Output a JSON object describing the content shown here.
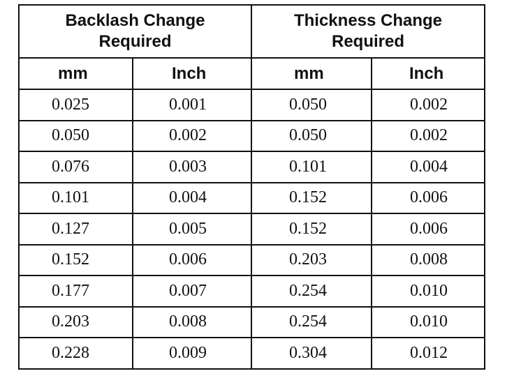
{
  "table": {
    "group_headers": [
      {
        "line1": "Backlash Change",
        "line2": "Required"
      },
      {
        "line1": "Thickness Change",
        "line2": "Required"
      }
    ],
    "unit_headers": [
      "mm",
      "Inch",
      "mm",
      "Inch"
    ],
    "rows": [
      [
        "0.025",
        "0.001",
        "0.050",
        "0.002"
      ],
      [
        "0.050",
        "0.002",
        "0.050",
        "0.002"
      ],
      [
        "0.076",
        "0.003",
        "0.101",
        "0.004"
      ],
      [
        "0.101",
        "0.004",
        "0.152",
        "0.006"
      ],
      [
        "0.127",
        "0.005",
        "0.152",
        "0.006"
      ],
      [
        "0.152",
        "0.006",
        "0.203",
        "0.008"
      ],
      [
        "0.177",
        "0.007",
        "0.254",
        "0.010"
      ],
      [
        "0.203",
        "0.008",
        "0.254",
        "0.010"
      ],
      [
        "0.228",
        "0.009",
        "0.304",
        "0.012"
      ]
    ]
  }
}
